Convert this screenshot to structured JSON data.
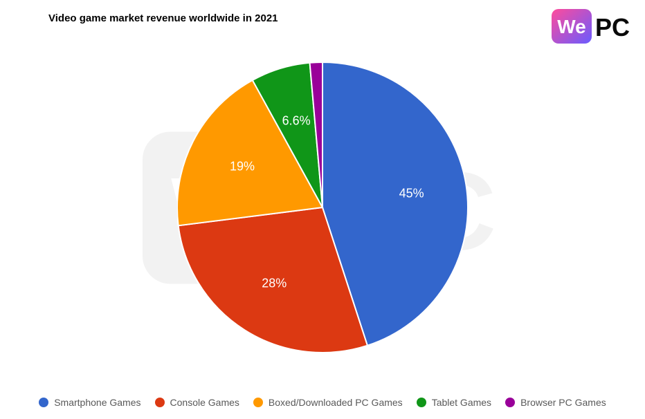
{
  "title": "Video game market revenue worldwide in 2021",
  "title_fontsize": 15,
  "logo": {
    "text_we": "We",
    "text_pc": "PC",
    "gradient_start": "#ff4b9b",
    "gradient_end": "#6a5bff",
    "pc_color": "#0a0a0a"
  },
  "watermark": {
    "text_we": "We",
    "text_pc": "PC",
    "opacity": 0.1
  },
  "chart": {
    "type": "pie",
    "radius": 210,
    "stroke_color": "#ffffff",
    "stroke_width": 2,
    "background_color": "#ffffff",
    "start_angle": -90,
    "slices": [
      {
        "name": "Smartphone Games",
        "value": 45,
        "label": "45%",
        "color": "#3366cc"
      },
      {
        "name": "Console Games",
        "value": 28,
        "label": "28%",
        "color": "#dc3912"
      },
      {
        "name": "Boxed/Downloaded PC Games",
        "value": 19,
        "label": "19%",
        "color": "#ff9900"
      },
      {
        "name": "Tablet Games",
        "value": 6.6,
        "label": "6.6%",
        "color": "#109618"
      },
      {
        "name": "Browser PC Games",
        "value": 1.4,
        "label": "",
        "color": "#990099"
      }
    ],
    "label_fontsize": 18,
    "label_color": "#ffffff"
  },
  "legend": {
    "fontsize": 14,
    "dot_size": 14,
    "text_color": "#595959",
    "items": [
      {
        "label": "Smartphone Games",
        "color": "#3366cc"
      },
      {
        "label": "Console Games",
        "color": "#dc3912"
      },
      {
        "label": "Boxed/Downloaded PC Games",
        "color": "#ff9900"
      },
      {
        "label": "Tablet Games",
        "color": "#109618"
      },
      {
        "label": "Browser PC Games",
        "color": "#990099"
      }
    ]
  }
}
